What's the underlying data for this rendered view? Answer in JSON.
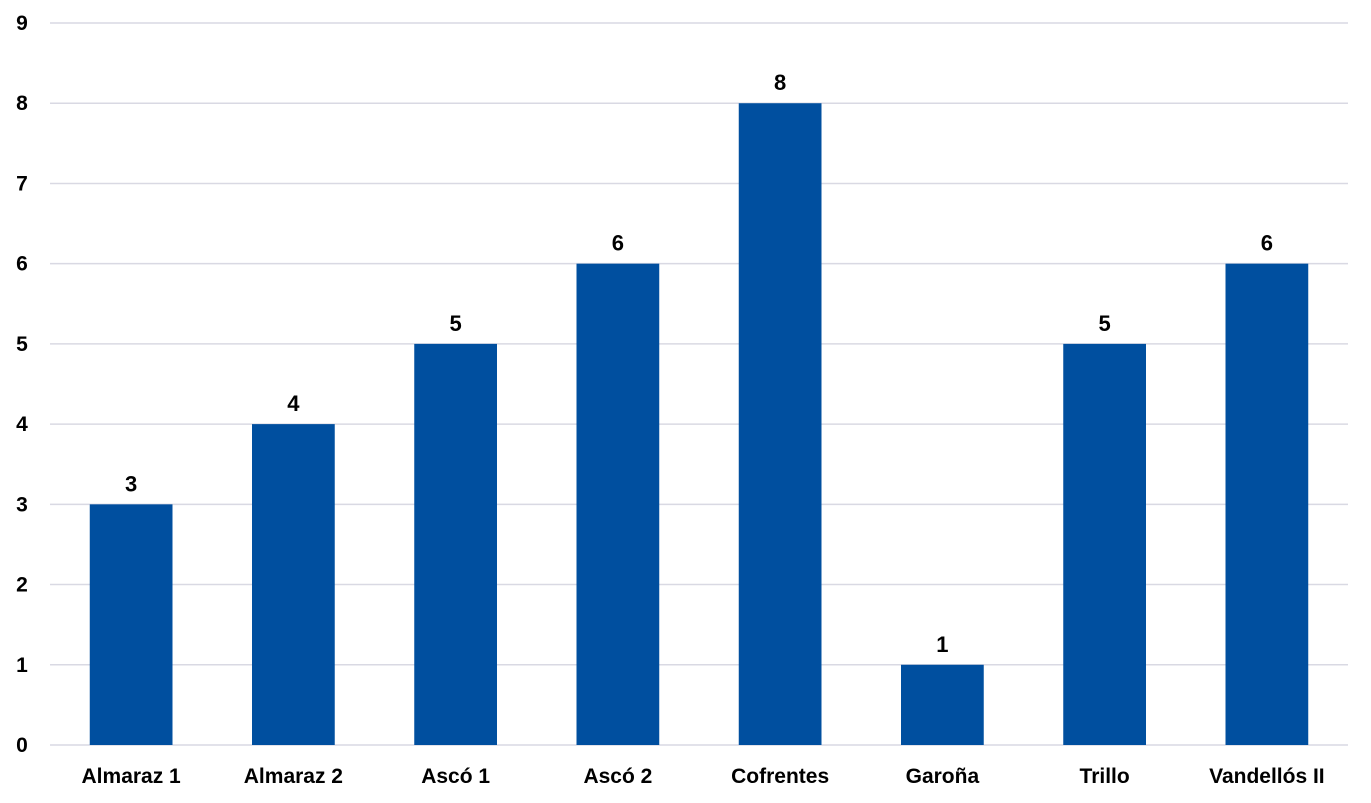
{
  "chart_data": {
    "type": "bar",
    "title": "",
    "xlabel": "",
    "ylabel": "",
    "categories": [
      "Almaraz 1",
      "Almaraz 2",
      "Ascó 1",
      "Ascó 2",
      "Cofrentes",
      "Garoña",
      "Trillo",
      "Vandellós II"
    ],
    "values": [
      3,
      4,
      5,
      6,
      8,
      1,
      5,
      6
    ],
    "ylim": [
      0,
      9
    ],
    "yticks": [
      "0",
      "1",
      "2",
      "3",
      "4",
      "5",
      "6",
      "7",
      "8",
      "9"
    ],
    "data_labels": [
      "3",
      "4",
      "5",
      "6",
      "8",
      "1",
      "5",
      "6"
    ],
    "bar_color": "#004f9f",
    "grid": true,
    "legend": "none"
  }
}
